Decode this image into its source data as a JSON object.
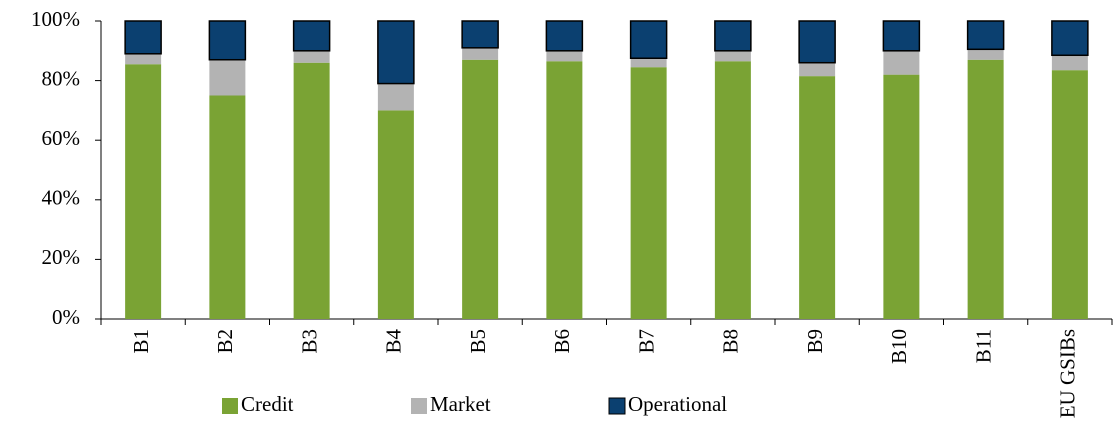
{
  "chart_data": {
    "type": "stacked-bar",
    "categories": [
      "B1",
      "B2",
      "B3",
      "B4",
      "B5",
      "B6",
      "B7",
      "B8",
      "B9",
      "B10",
      "B11",
      "EU GSIBs"
    ],
    "series": [
      {
        "name": "Credit",
        "color": "#7aa334",
        "values": [
          85.5,
          75,
          86,
          70,
          87,
          86.5,
          84.5,
          86.5,
          81.5,
          82,
          87,
          83.5
        ]
      },
      {
        "name": "Market",
        "color": "#b3b3b3",
        "values": [
          3.5,
          12,
          4,
          9,
          4,
          3.5,
          3,
          3.5,
          4.5,
          8,
          3.5,
          5
        ]
      },
      {
        "name": "Operational",
        "color": "#0b4070",
        "values": [
          11,
          13,
          10,
          21,
          9,
          10,
          12.5,
          10,
          14,
          10,
          9.5,
          11.5
        ]
      }
    ],
    "ylim": [
      0,
      100
    ],
    "yticks": [
      {
        "value": 0,
        "label": "0%"
      },
      {
        "value": 20,
        "label": "20%"
      },
      {
        "value": 40,
        "label": "40%"
      },
      {
        "value": 60,
        "label": "60%"
      },
      {
        "value": 80,
        "label": "80%"
      },
      {
        "value": 100,
        "label": "100%"
      }
    ],
    "grid": false,
    "legend": "bottom"
  }
}
